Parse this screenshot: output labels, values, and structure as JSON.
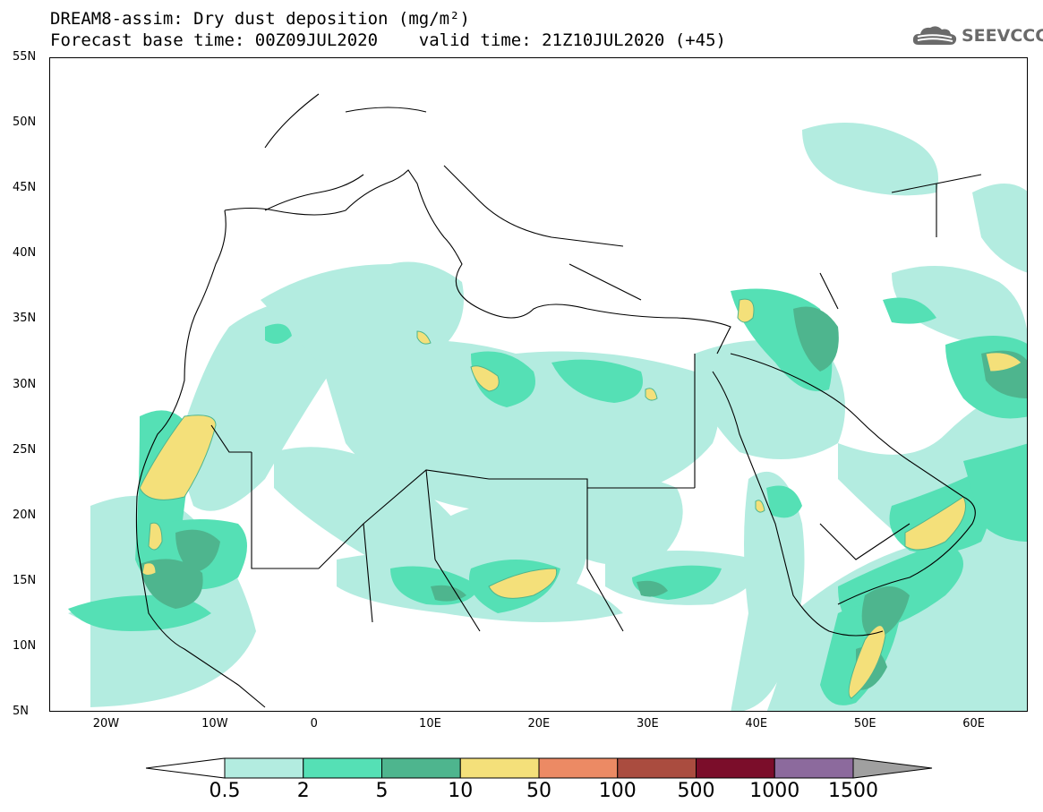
{
  "header": {
    "title_line1": "DREAM8-assim: Dry dust deposition (mg/m²)",
    "title_line2": "Forecast base time: 00Z09JUL2020    valid time: 21Z10JUL2020 (+45)"
  },
  "logo": {
    "text": "SEEVCCC",
    "icon": "cloud-icon"
  },
  "map": {
    "projection": "equirectangular",
    "lon_range": [
      -25,
      65
    ],
    "lat_range": [
      5,
      55
    ],
    "lat_labels": [
      "55N",
      "50N",
      "45N",
      "40N",
      "35N",
      "30N",
      "25N",
      "20N",
      "15N",
      "10N",
      "5N"
    ],
    "lon_labels": [
      "20W",
      "10W",
      "0",
      "10E",
      "20E",
      "30E",
      "40E",
      "50E",
      "60E"
    ],
    "colors": {
      "level_1": "#b3ece0",
      "level_2": "#55e0b5",
      "level_3": "#4eb58e",
      "level_4": "#f4e07a"
    }
  },
  "legend": {
    "labels": [
      "0.5",
      "2",
      "5",
      "10",
      "50",
      "100",
      "500",
      "1000",
      "1500"
    ],
    "colors": [
      "#ffffff",
      "#b3ece0",
      "#55e0b5",
      "#4eb58e",
      "#f4e07a",
      "#ec8a64",
      "#aa4c3f",
      "#7b0d2a",
      "#8c6a9d",
      "#a0a0a0"
    ]
  }
}
